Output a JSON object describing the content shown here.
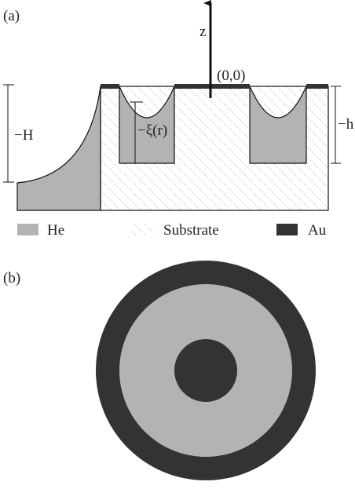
{
  "panel_a": {
    "label": "(a)",
    "axis_label": "z",
    "origin_label": "(0,0)",
    "dimensions": {
      "H": "−H",
      "xi": "−ξ(r)",
      "h": "−h"
    },
    "legend": [
      {
        "label": "He"
      },
      {
        "label": "Substrate"
      },
      {
        "label": "Au"
      }
    ]
  },
  "panel_b": {
    "label": "(b)"
  }
}
